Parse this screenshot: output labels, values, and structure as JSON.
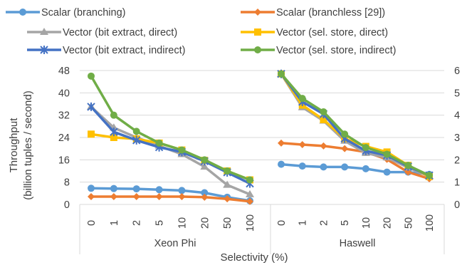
{
  "chart_data": {
    "type": "line",
    "xlabel": "Selectivity (%)",
    "ylabel_lines": [
      "Throughput",
      "(billion tuples / second)"
    ],
    "left_axis": {
      "ylim": [
        0,
        48
      ],
      "ticks": [
        "0",
        "8",
        "16",
        "24",
        "32",
        "40",
        "48"
      ],
      "tick_values": [
        0,
        8,
        16,
        24,
        32,
        40,
        48
      ]
    },
    "right_axis": {
      "ylim": [
        0,
        6
      ],
      "ticks": [
        "0",
        "1",
        "2",
        "3",
        "4",
        "5",
        "6"
      ],
      "tick_values": [
        0,
        1,
        2,
        3,
        4,
        5,
        6
      ]
    },
    "grid": true,
    "legend_position": "top",
    "groups": [
      {
        "name": "Xeon Phi",
        "axis": "left",
        "categories": [
          "0",
          "1",
          "2",
          "5",
          "10",
          "20",
          "50",
          "100"
        ],
        "series": [
          {
            "name": "Scalar (branching)",
            "color": "#5B9BD5",
            "marker": "circle",
            "values": [
              5.8,
              5.7,
              5.6,
              5.3,
              5.0,
              4.2,
              2.6,
              1.3
            ]
          },
          {
            "name": "Scalar (branchless [29])",
            "color": "#ED7D31",
            "marker": "diamond",
            "values": [
              2.8,
              2.8,
              2.8,
              2.8,
              2.8,
              2.6,
              2.0,
              1.1
            ]
          },
          {
            "name": "Vector (bit extract, direct)",
            "color": "#A5A5A5",
            "marker": "triangle",
            "values": [
              35,
              27.5,
              24,
              21,
              18,
              13.5,
              7,
              3.6
            ]
          },
          {
            "name": "Vector (sel. store, direct)",
            "color": "#FFC000",
            "marker": "square",
            "values": [
              25.2,
              24,
              23.5,
              22,
              19.5,
              15.8,
              12,
              8.8
            ]
          },
          {
            "name": "Vector (bit extract, indirect)",
            "color": "#4472C4",
            "marker": "star",
            "values": [
              35,
              26,
              23,
              20.5,
              18.8,
              15.5,
              11.5,
              7.5
            ]
          },
          {
            "name": "Vector (sel. store, indirect)",
            "color": "#70AD47",
            "marker": "circle",
            "values": [
              46,
              32,
              26.2,
              22,
              19.5,
              16,
              12,
              8.8
            ]
          }
        ]
      },
      {
        "name": "Haswell",
        "axis": "right",
        "categories": [
          "0",
          "1",
          "2",
          "5",
          "10",
          "20",
          "50",
          "100"
        ],
        "series": [
          {
            "name": "Scalar (branching)",
            "color": "#5B9BD5",
            "marker": "circle",
            "values": [
              1.8,
              1.72,
              1.68,
              1.68,
              1.6,
              1.45,
              1.45,
              1.35
            ]
          },
          {
            "name": "Scalar (branchless [29])",
            "color": "#ED7D31",
            "marker": "diamond",
            "values": [
              2.75,
              2.68,
              2.62,
              2.5,
              2.35,
              2.02,
              1.45,
              1.15
            ]
          },
          {
            "name": "Vector (bit extract, direct)",
            "color": "#A5A5A5",
            "marker": "triangle",
            "values": [
              5.85,
              4.35,
              3.75,
              2.85,
              2.3,
              2.1,
              1.65,
              1.25
            ]
          },
          {
            "name": "Vector (sel. store, direct)",
            "color": "#FFC000",
            "marker": "square",
            "values": [
              5.85,
              4.45,
              3.8,
              2.95,
              2.6,
              2.35,
              1.75,
              1.25
            ]
          },
          {
            "name": "Vector (bit extract, indirect)",
            "color": "#4472C4",
            "marker": "star",
            "values": [
              5.85,
              4.6,
              4.05,
              2.95,
              2.4,
              2.2,
              1.7,
              1.3
            ]
          },
          {
            "name": "Vector (sel. store, indirect)",
            "color": "#70AD47",
            "marker": "circle",
            "values": [
              5.85,
              4.75,
              4.15,
              3.15,
              2.55,
              2.25,
              1.75,
              1.3
            ]
          }
        ]
      }
    ]
  }
}
